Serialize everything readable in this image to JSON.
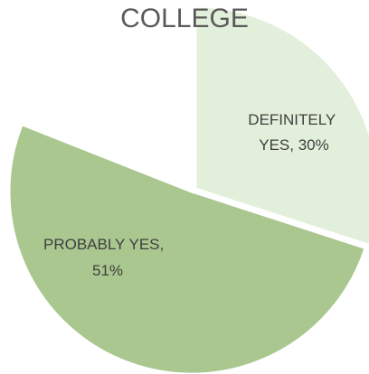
{
  "chart_data": {
    "type": "pie",
    "title": "COLLEGE",
    "start_angle_deg": 0,
    "direction": "clockwise",
    "exploded_slice": "DEFINITELY YES",
    "slices": [
      {
        "label": "DEFINITELY YES",
        "value": 30,
        "value_label": "30%",
        "color": "#e2efda"
      },
      {
        "label": "PROBABLY YES",
        "value": 51,
        "value_label": "51%",
        "color": "#a9c78f"
      },
      {
        "label": "",
        "value": 19,
        "value_label": "",
        "color": "#ffffff"
      }
    ]
  }
}
